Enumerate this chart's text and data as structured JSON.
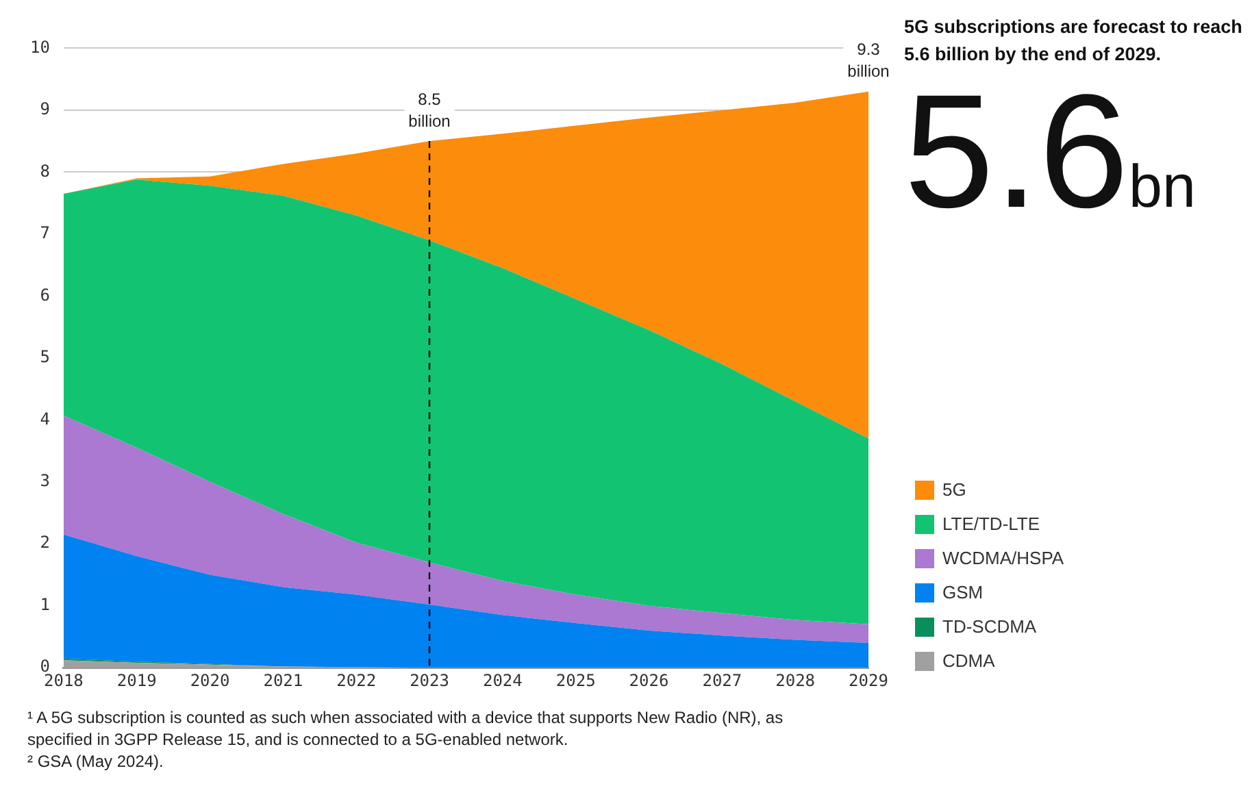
{
  "chart_data": {
    "type": "area",
    "stacked": true,
    "title": "5G subscriptions are forecast to reach 5.6 billion by the end of 2029.",
    "x": [
      2018,
      2019,
      2020,
      2021,
      2022,
      2023,
      2024,
      2025,
      2026,
      2027,
      2028,
      2029
    ],
    "xlim": [
      2018,
      2029
    ],
    "xticks": [
      2018,
      2019,
      2020,
      2021,
      2022,
      2023,
      2024,
      2025,
      2026,
      2027,
      2028,
      2029
    ],
    "ylim": [
      0,
      10
    ],
    "yticks": [
      0,
      1,
      2,
      3,
      4,
      5,
      6,
      7,
      8,
      9,
      10
    ],
    "grid": "y",
    "legend": "right",
    "series": [
      {
        "name": "CDMA",
        "color": "#a0a0a0",
        "values": [
          0.12,
          0.08,
          0.05,
          0.02,
          0.01,
          0,
          0,
          0,
          0,
          0,
          0,
          0
        ]
      },
      {
        "name": "TD-SCDMA",
        "color": "#0a8f5a",
        "values": [
          0.03,
          0.02,
          0.01,
          0,
          0,
          0,
          0,
          0,
          0,
          0,
          0,
          0
        ]
      },
      {
        "name": "GSM",
        "color": "#0082f0",
        "values": [
          2.0,
          1.7,
          1.44,
          1.28,
          1.17,
          1.02,
          0.85,
          0.72,
          0.6,
          0.52,
          0.45,
          0.4
        ]
      },
      {
        "name": "WCDMA/HSPA",
        "color": "#ab78d2",
        "values": [
          1.92,
          1.75,
          1.5,
          1.18,
          0.84,
          0.68,
          0.55,
          0.46,
          0.4,
          0.36,
          0.32,
          0.3
        ]
      },
      {
        "name": "LTE/TD-LTE",
        "color": "#12c472",
        "values": [
          3.58,
          4.33,
          4.78,
          5.14,
          5.28,
          5.2,
          5.05,
          4.77,
          4.45,
          4.02,
          3.53,
          3.0
        ]
      },
      {
        "name": "5G",
        "color": "#fb8c0c",
        "values": [
          0,
          0.02,
          0.15,
          0.51,
          1.0,
          1.6,
          2.17,
          2.8,
          3.43,
          4.1,
          4.82,
          5.6
        ]
      }
    ],
    "ref_lines": [
      {
        "axis": "x",
        "value": 2023,
        "line_style": "dashed",
        "color": "#000000"
      }
    ],
    "annotations": [
      {
        "text": "8.5 billion",
        "x": 2023,
        "y": 8.5
      },
      {
        "text": "9.3 billion",
        "x": 2029,
        "y": 9.3
      },
      "5.6bn",
      "¹ A 5G subscription is counted as such when associated with a device that supports New Radio (NR), as specified in 3GPP Release 15, and is connected to a 5G-enabled network.",
      "² GSA (May 2024)."
    ]
  }
}
